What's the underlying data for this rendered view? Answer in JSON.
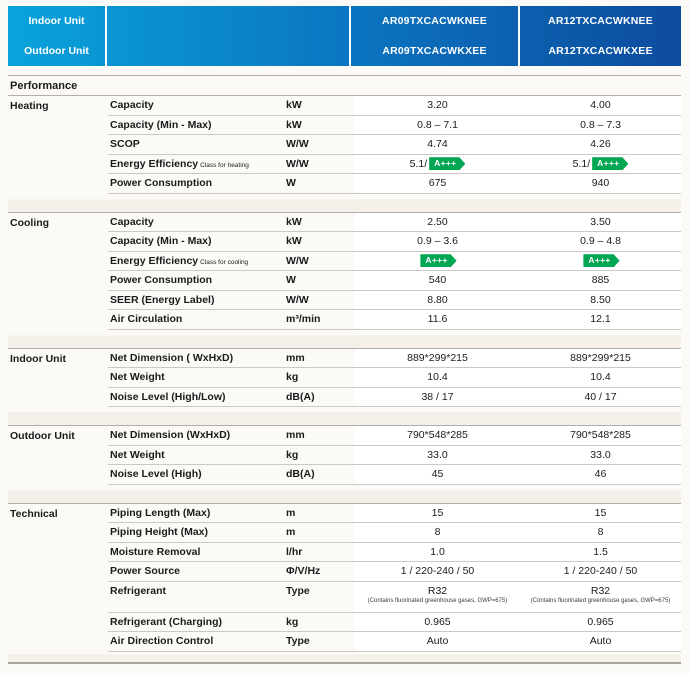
{
  "header": {
    "row_labels": [
      "Indoor Unit",
      "Outdoor Unit"
    ],
    "columns": [
      {
        "indoor_model": "AR09TXCACWKNEE",
        "outdoor_model": "AR09TXCACWKXEE"
      },
      {
        "indoor_model": "AR12TXCACWKNEE",
        "outdoor_model": "AR12TXCACWKXEE"
      }
    ]
  },
  "performance_label": "Performance",
  "badge": {
    "label": "A+++"
  },
  "colors": {
    "header_gradient_start": "#0aa3dc",
    "header_gradient_mid": "#0b74c0",
    "header_gradient_end": "#0d4b9e",
    "badge_green": "#00a651",
    "text_dark": "#1b1b1b"
  },
  "sections": [
    {
      "category": "Heating",
      "rows": [
        {
          "name": "Capacity",
          "unit": "kW",
          "values": [
            "3.20",
            "4.00"
          ]
        },
        {
          "name": "Capacity (Min - Max)",
          "unit": "kW",
          "values": [
            "0.8 – 7.1",
            "0.8 – 7.3"
          ]
        },
        {
          "name": "SCOP",
          "unit": "W/W",
          "values": [
            "4.74",
            "4.26"
          ]
        },
        {
          "name": "Energy Efficiency",
          "suffix": "Class for heating",
          "unit": "W/W",
          "values": [
            "5.1/",
            "5.1/"
          ],
          "badge": true
        },
        {
          "name": "Power Consumption",
          "unit": "W",
          "values": [
            "675",
            "940"
          ]
        }
      ]
    },
    {
      "category": "Cooling",
      "rows": [
        {
          "name": "Capacity",
          "unit": "kW",
          "values": [
            "2.50",
            "3.50"
          ]
        },
        {
          "name": "Capacity (Min - Max)",
          "unit": "kW",
          "values": [
            "0.9 – 3.6",
            "0.9 – 4.8"
          ]
        },
        {
          "name": "Energy Efficiency",
          "suffix": "Class for cooling",
          "unit": "W/W",
          "values": [
            "",
            ""
          ],
          "badge": true
        },
        {
          "name": "Power Consumption",
          "unit": "W",
          "values": [
            "540",
            "885"
          ]
        },
        {
          "name": "SEER (Energy Label)",
          "unit": "W/W",
          "values": [
            "8.80",
            "8.50"
          ]
        },
        {
          "name": "Air Circulation",
          "unit": "m³/min",
          "values": [
            "11.6",
            "12.1"
          ]
        }
      ]
    },
    {
      "category": "Indoor Unit",
      "rows": [
        {
          "name": "Net Dimension ( WxHxD)",
          "unit": "mm",
          "values": [
            "889*299*215",
            "889*299*215"
          ]
        },
        {
          "name": "Net Weight",
          "unit": "kg",
          "values": [
            "10.4",
            "10.4"
          ]
        },
        {
          "name": "Noise Level (High/Low)",
          "unit": "dB(A)",
          "values": [
            "38 / 17",
            "40 / 17"
          ]
        }
      ]
    },
    {
      "category": "Outdoor Unit",
      "rows": [
        {
          "name": "Net Dimension (WxHxD)",
          "unit": "mm",
          "values": [
            "790*548*285",
            "790*548*285"
          ]
        },
        {
          "name": "Net Weight",
          "unit": "kg",
          "values": [
            "33.0",
            "33.0"
          ]
        },
        {
          "name": "Noise Level (High)",
          "unit": "dB(A)",
          "values": [
            "45",
            "46"
          ]
        }
      ]
    },
    {
      "category": "Technical",
      "rows": [
        {
          "name": "Piping Length (Max)",
          "unit": "m",
          "values": [
            "15",
            "15"
          ]
        },
        {
          "name": "Piping Height (Max)",
          "unit": "m",
          "values": [
            "8",
            "8"
          ]
        },
        {
          "name": "Moisture Removal",
          "unit": "l/hr",
          "values": [
            "1.0",
            "1.5"
          ]
        },
        {
          "name": "Power Source",
          "unit": "Φ/V/Hz",
          "values": [
            "1 / 220-240 / 50",
            "1 / 220-240 / 50"
          ]
        },
        {
          "name": "Refrigerant",
          "unit": "Type",
          "values": [
            "R32",
            "R32"
          ],
          "subtext": "(Contains fluorinated greenhouse gases, GWP=675)"
        },
        {
          "name": "Refrigerant (Charging)",
          "unit": "kg",
          "values": [
            "0.965",
            "0.965"
          ]
        },
        {
          "name": "Air Direction Control",
          "unit": "Type",
          "values": [
            "Auto",
            "Auto"
          ]
        }
      ]
    }
  ]
}
